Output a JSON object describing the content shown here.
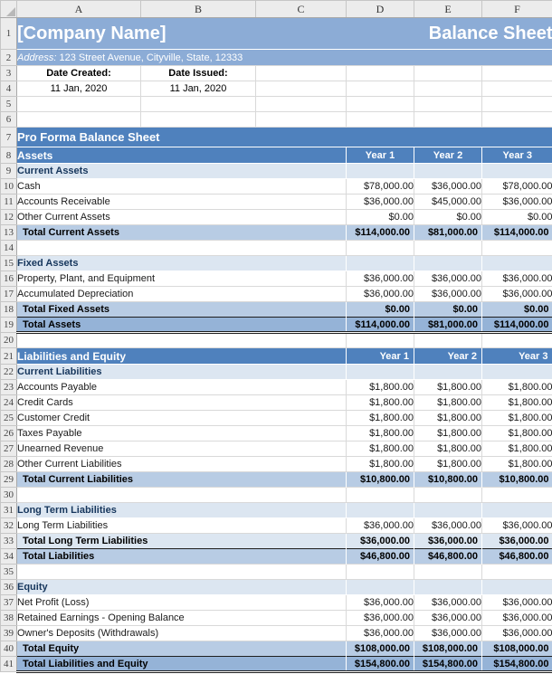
{
  "colors": {
    "banner": "#8CACD6",
    "band": "#4F81BD",
    "section_bg": "#DCE6F1",
    "total_bg": "#B8CCE4",
    "grand_bg": "#95B3D7",
    "section_text": "#16365C",
    "grid": "#d9d9d9",
    "gutter_bg": "#ececec",
    "gutter_border": "#c6c6c6",
    "dark_border": "#1f1f1f"
  },
  "columns": [
    "A",
    "B",
    "C",
    "D",
    "E",
    "F"
  ],
  "rows": [
    {
      "n": 1,
      "kind": "banner-title",
      "left": "[Company Name]",
      "right": "Balance Sheet"
    },
    {
      "n": 2,
      "kind": "banner-address",
      "label": "Address:",
      "text": "123 Street Avenue, Cityville, State, 12333"
    },
    {
      "n": 3,
      "kind": "date-labels",
      "a": "Date Created:",
      "b": "Date Issued:"
    },
    {
      "n": 4,
      "kind": "date-values",
      "a": "11 Jan, 2020",
      "b": "11 Jan, 2020"
    },
    {
      "n": 5,
      "kind": "empty6"
    },
    {
      "n": 6,
      "kind": "empty6"
    },
    {
      "n": 7,
      "kind": "band",
      "text": "Pro Forma Balance Sheet"
    },
    {
      "n": 8,
      "kind": "thead",
      "label": "Assets",
      "years": [
        "Year 1",
        "Year 2",
        "Year 3"
      ],
      "year_align": "center"
    },
    {
      "n": 9,
      "kind": "section",
      "label": "Current Assets"
    },
    {
      "n": 10,
      "kind": "data",
      "label": "Cash",
      "values": [
        "$78,000.00",
        "$36,000.00",
        "$78,000.00"
      ]
    },
    {
      "n": 11,
      "kind": "data",
      "label": "Accounts Receivable",
      "values": [
        "$36,000.00",
        "$45,000.00",
        "$36,000.00"
      ]
    },
    {
      "n": 12,
      "kind": "data",
      "label": "Other Current Assets",
      "values": [
        "$0.00",
        "$0.00",
        "$0.00"
      ]
    },
    {
      "n": 13,
      "kind": "total",
      "label": "Total Current Assets",
      "values": [
        "$114,000.00",
        "$81,000.00",
        "$114,000.00"
      ]
    },
    {
      "n": 14,
      "kind": "empty"
    },
    {
      "n": 15,
      "kind": "section",
      "label": "Fixed Assets"
    },
    {
      "n": 16,
      "kind": "data",
      "label": "Property, Plant, and Equipment",
      "values": [
        "$36,000.00",
        "$36,000.00",
        "$36,000.00"
      ]
    },
    {
      "n": 17,
      "kind": "data",
      "label": "Accumulated Depreciation",
      "values": [
        "$36,000.00",
        "$36,000.00",
        "$36,000.00"
      ]
    },
    {
      "n": 18,
      "kind": "total",
      "label": "Total Fixed Assets",
      "values": [
        "$0.00",
        "$0.00",
        "$0.00"
      ]
    },
    {
      "n": 19,
      "kind": "grandtotal",
      "label": "Total Assets",
      "values": [
        "$114,000.00",
        "$81,000.00",
        "$114,000.00"
      ]
    },
    {
      "n": 20,
      "kind": "empty"
    },
    {
      "n": 21,
      "kind": "thead",
      "label": "Liabilities and Equity",
      "years": [
        "Year 1",
        "Year 2",
        "Year 3"
      ],
      "year_align": "right"
    },
    {
      "n": 22,
      "kind": "section",
      "label": "Current Liabilities"
    },
    {
      "n": 23,
      "kind": "data",
      "label": "Accounts Payable",
      "values": [
        "$1,800.00",
        "$1,800.00",
        "$1,800.00"
      ]
    },
    {
      "n": 24,
      "kind": "data",
      "label": "Credit Cards",
      "values": [
        "$1,800.00",
        "$1,800.00",
        "$1,800.00"
      ]
    },
    {
      "n": 25,
      "kind": "data",
      "label": "Customer Credit",
      "values": [
        "$1,800.00",
        "$1,800.00",
        "$1,800.00"
      ]
    },
    {
      "n": 26,
      "kind": "data",
      "label": "Taxes Payable",
      "values": [
        "$1,800.00",
        "$1,800.00",
        "$1,800.00"
      ]
    },
    {
      "n": 27,
      "kind": "data",
      "label": "Unearned Revenue",
      "values": [
        "$1,800.00",
        "$1,800.00",
        "$1,800.00"
      ]
    },
    {
      "n": 28,
      "kind": "data",
      "label": "Other Current Liabilities",
      "values": [
        "$1,800.00",
        "$1,800.00",
        "$1,800.00"
      ]
    },
    {
      "n": 29,
      "kind": "total",
      "label": "Total Current Liabilities",
      "values": [
        "$10,800.00",
        "$10,800.00",
        "$10,800.00"
      ]
    },
    {
      "n": 30,
      "kind": "empty"
    },
    {
      "n": 31,
      "kind": "section",
      "label": "Long Term Liabilities"
    },
    {
      "n": 32,
      "kind": "data",
      "label": "Long Term Liabilities",
      "values": [
        "$36,000.00",
        "$36,000.00",
        "$36,000.00"
      ]
    },
    {
      "n": 33,
      "kind": "total-light",
      "label": "Total Long Term Liabilities",
      "values": [
        "$36,000.00",
        "$36,000.00",
        "$36,000.00"
      ]
    },
    {
      "n": 34,
      "kind": "total",
      "label": "Total Liabilities",
      "values": [
        "$46,800.00",
        "$46,800.00",
        "$46,800.00"
      ]
    },
    {
      "n": 35,
      "kind": "empty"
    },
    {
      "n": 36,
      "kind": "section",
      "label": "Equity"
    },
    {
      "n": 37,
      "kind": "data",
      "label": "Net Profit (Loss)",
      "values": [
        "$36,000.00",
        "$36,000.00",
        "$36,000.00"
      ]
    },
    {
      "n": 38,
      "kind": "data",
      "label": "Retained Earnings - Opening Balance",
      "values": [
        "$36,000.00",
        "$36,000.00",
        "$36,000.00"
      ]
    },
    {
      "n": 39,
      "kind": "data",
      "label": "Owner's Deposits (Withdrawals)",
      "values": [
        "$36,000.00",
        "$36,000.00",
        "$36,000.00"
      ]
    },
    {
      "n": 40,
      "kind": "total",
      "label": "Total Equity",
      "values": [
        "$108,000.00",
        "$108,000.00",
        "$108,000.00"
      ]
    },
    {
      "n": 41,
      "kind": "grandtotal",
      "label": "Total Liabilities and Equity",
      "values": [
        "$154,800.00",
        "$154,800.00",
        "$154,800.00"
      ]
    }
  ]
}
